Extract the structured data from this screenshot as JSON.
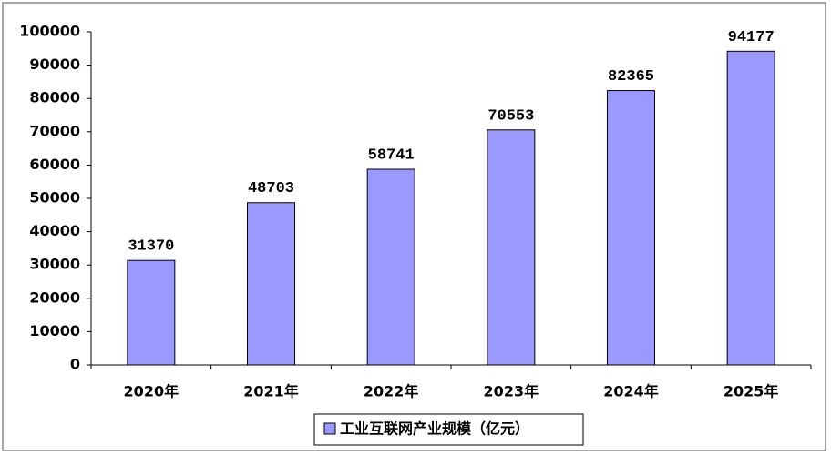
{
  "chart_data": {
    "type": "bar",
    "categories": [
      "2020年",
      "2021年",
      "2022年",
      "2023年",
      "2024年",
      "2025年"
    ],
    "series": [
      {
        "name": "工业互联网产业规模（亿元）",
        "color": "#9999ff",
        "values": [
          31370,
          48703,
          58741,
          70553,
          82365,
          94177
        ]
      }
    ],
    "ylim": [
      0,
      100000
    ],
    "yticks": [
      0,
      10000,
      20000,
      30000,
      40000,
      50000,
      60000,
      70000,
      80000,
      90000,
      100000
    ],
    "grid": false,
    "legend": "bottom"
  }
}
